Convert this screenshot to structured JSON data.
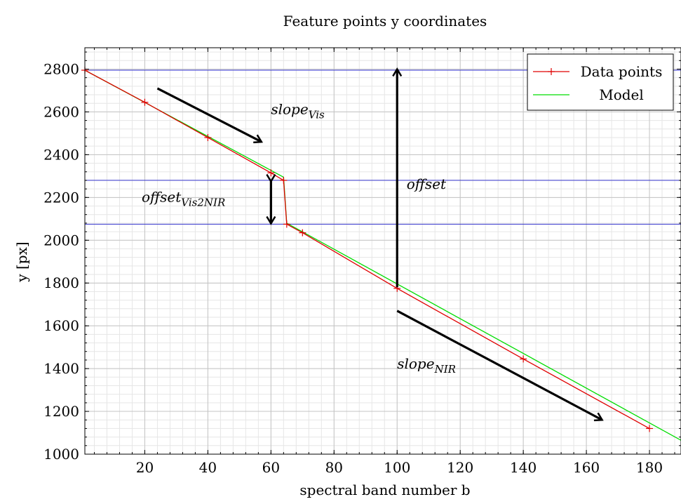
{
  "chart_data": {
    "type": "line",
    "title": "Feature points y coordinates",
    "xlabel": "spectral band number b",
    "ylabel": "y [px]",
    "xlim": [
      1,
      190
    ],
    "ylim": [
      1000,
      2900
    ],
    "xticks": [
      20,
      40,
      60,
      80,
      100,
      120,
      140,
      160,
      180
    ],
    "yticks": [
      1000,
      1200,
      1400,
      1600,
      1800,
      2000,
      2200,
      2400,
      2600,
      2800
    ],
    "grid": true,
    "legend_position": "top-right",
    "series": [
      {
        "name": "Data points",
        "color": "#e00000",
        "marker": "plus",
        "x": [
          1,
          20,
          40,
          60,
          64,
          65,
          70,
          100,
          140,
          180
        ],
        "y": [
          2795,
          2645,
          2480,
          2315,
          2280,
          2075,
          2035,
          1775,
          1445,
          1120
        ]
      },
      {
        "name": "Model",
        "color": "#00dd00",
        "marker": "none",
        "x": [
          1,
          64,
          65,
          190
        ],
        "y": [
          2795,
          2295,
          2080,
          1065
        ]
      }
    ],
    "reference_lines": [
      {
        "y": 2795,
        "color": "#3333cc"
      },
      {
        "y": 2280,
        "color": "#3333cc"
      },
      {
        "y": 2075,
        "color": "#3333cc"
      }
    ],
    "annotations": [
      {
        "type": "arrow",
        "from": [
          24,
          2710
        ],
        "to": [
          57,
          2460
        ]
      },
      {
        "type": "text",
        "base": "slope",
        "sub": "Vis",
        "at": [
          60,
          2590
        ]
      },
      {
        "type": "double-arrow",
        "x": 60,
        "y_from": 2275,
        "y_to": 2078
      },
      {
        "type": "text",
        "base": "offset",
        "sub": "Vis2NIR",
        "at": [
          19,
          2180
        ]
      },
      {
        "type": "arrow",
        "from": [
          100,
          1780
        ],
        "to": [
          100,
          2800
        ]
      },
      {
        "type": "text",
        "base": "offset",
        "sub": "",
        "at": [
          103,
          2240
        ]
      },
      {
        "type": "arrow",
        "from": [
          100,
          1670
        ],
        "to": [
          165,
          1160
        ]
      },
      {
        "type": "text",
        "base": "slope",
        "sub": "NIR",
        "at": [
          100,
          1400
        ]
      }
    ]
  }
}
